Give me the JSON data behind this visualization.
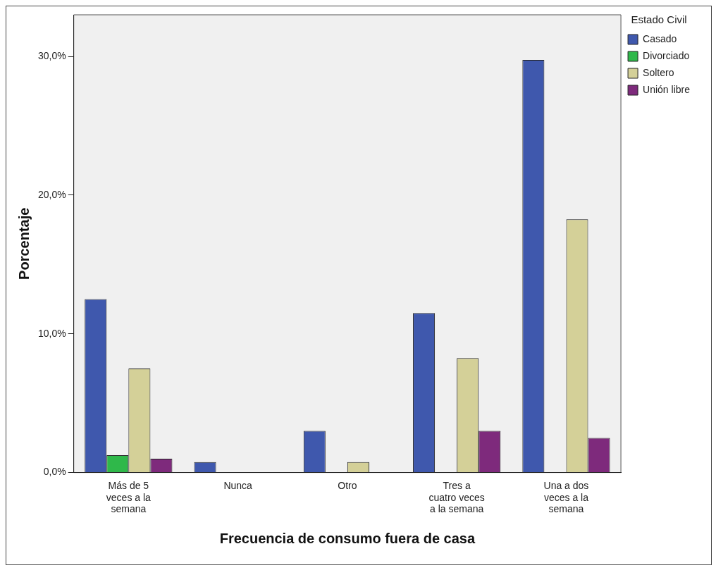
{
  "chart_data": {
    "type": "bar",
    "xlabel": "Frecuencia de consumo fuera de casa",
    "ylabel": "Porcentaje",
    "legend_title": "Estado Civil",
    "legend": "right",
    "categories": [
      "Más de 5 veces a la semana",
      "Nunca",
      "Otro",
      "Tres a cuatro veces a la semana",
      "Una a dos veces a la semana"
    ],
    "series": [
      {
        "name": "Casado",
        "color": "#3f58ad",
        "values": [
          12.5,
          0.75,
          3.0,
          11.5,
          29.75
        ]
      },
      {
        "name": "Divorciado",
        "color": "#2fb84a",
        "values": [
          1.25,
          0,
          0,
          0,
          0
        ]
      },
      {
        "name": "Soltero",
        "color": "#d4d098",
        "values": [
          7.5,
          0,
          0.75,
          8.25,
          18.25
        ]
      },
      {
        "name": "Unión libre",
        "color": "#7e2a7c",
        "values": [
          1.0,
          0,
          0,
          3.0,
          2.5
        ]
      }
    ],
    "ylim": [
      0,
      33
    ],
    "yticks": [
      {
        "value": 0,
        "label": "0,0%"
      },
      {
        "value": 10,
        "label": "10,0%"
      },
      {
        "value": 20,
        "label": "20,0%"
      },
      {
        "value": 30,
        "label": "30,0%"
      }
    ],
    "grid": false
  }
}
